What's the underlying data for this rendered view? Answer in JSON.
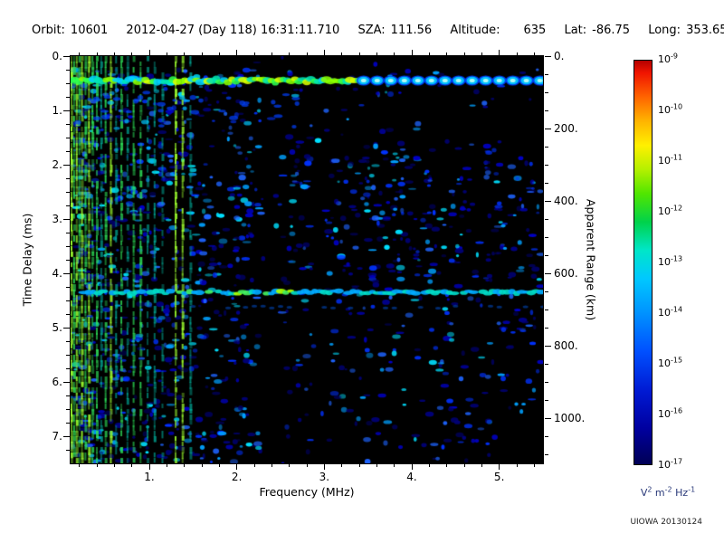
{
  "header": {
    "orbit_label": "Orbit:",
    "orbit_value": "10601",
    "datetime": "2012-04-27 (Day 118) 16:31:11.710",
    "sza_label": "SZA:",
    "sza_value": "111.56",
    "altitude_label": "Altitude:",
    "altitude_value": "635",
    "lat_label": "Lat:",
    "lat_value": "-86.75",
    "long_label": "Long:",
    "long_value": "353.65"
  },
  "chart_data": {
    "type": "heatmap",
    "title": "",
    "xlabel": "Frequency (MHz)",
    "ylabel_left": "Time Delay (ms)",
    "ylabel_right": "Apparent Range (km)",
    "x_range": [
      0.1,
      5.5
    ],
    "x_tick_values": [
      1,
      2,
      3,
      4,
      5
    ],
    "x_tick_labels": [
      "1.",
      "2.",
      "3.",
      "4.",
      "5."
    ],
    "x_minor_step": 0.2,
    "y_range_ms": [
      0,
      7.5
    ],
    "y_tick_values": [
      0,
      1,
      2,
      3,
      4,
      5,
      6,
      7
    ],
    "y_tick_labels": [
      "0.",
      "1.",
      "2.",
      "3.",
      "4.",
      "5.",
      "6.",
      "7."
    ],
    "y_minor_step": 0.25,
    "y2_km_per_ms": 150,
    "y2_tick_values_km": [
      0,
      200,
      400,
      600,
      800,
      1000
    ],
    "y2_tick_labels": [
      "0.",
      "200.",
      "400.",
      "600.",
      "800.",
      "1000."
    ],
    "y2_minor_step_km": 50,
    "background": "#000000",
    "features": {
      "ionosphere_trace": {
        "delay_ms": 0.45,
        "bead_start_mhz": 3.45,
        "bead_step_mhz": 0.155
      },
      "surface_trace": {
        "delay_ms": 4.35,
        "start_mhz": 0.25,
        "echo_delay_ms": 4.62
      },
      "vertical_lines": [
        {
          "mhz": 0.11,
          "i": 1.0
        },
        {
          "mhz": 0.14,
          "i": 0.85
        },
        {
          "mhz": 0.17,
          "i": 0.95
        },
        {
          "mhz": 0.2,
          "i": 0.7
        },
        {
          "mhz": 0.23,
          "i": 0.9
        },
        {
          "mhz": 0.27,
          "i": 0.8
        },
        {
          "mhz": 0.31,
          "i": 0.95
        },
        {
          "mhz": 0.35,
          "i": 0.7
        },
        {
          "mhz": 0.4,
          "i": 0.85
        },
        {
          "mhz": 0.45,
          "i": 0.6
        },
        {
          "mhz": 0.5,
          "i": 0.8
        },
        {
          "mhz": 0.56,
          "i": 0.9
        },
        {
          "mhz": 0.62,
          "i": 0.6
        },
        {
          "mhz": 0.68,
          "i": 0.75
        },
        {
          "mhz": 0.75,
          "i": 0.55
        },
        {
          "mhz": 0.82,
          "i": 0.7
        },
        {
          "mhz": 0.9,
          "i": 0.8
        },
        {
          "mhz": 0.98,
          "i": 0.5
        },
        {
          "mhz": 1.06,
          "i": 0.65
        },
        {
          "mhz": 1.15,
          "i": 0.45
        },
        {
          "mhz": 1.3,
          "i": 0.95
        },
        {
          "mhz": 1.38,
          "i": 0.9
        },
        {
          "mhz": 1.47,
          "i": 0.6
        }
      ],
      "absorption_gaps_mhz": [
        [
          2.28,
          2.52
        ],
        [
          2.85,
          3.02
        ]
      ],
      "speckle": {
        "count": 3000,
        "palette": [
          "#000078",
          "#0000c8",
          "#0032ff",
          "#1e64ff",
          "#00a0ff",
          "#00e0ff"
        ]
      }
    }
  },
  "colorbar": {
    "exponents": [
      "-9",
      "-10",
      "-11",
      "-12",
      "-13",
      "-14",
      "-15",
      "-16",
      "-17"
    ],
    "unit_parts": [
      [
        "V",
        "2"
      ],
      [
        "m",
        "-2"
      ],
      [
        "Hz",
        "-1"
      ]
    ],
    "gradient": [
      [
        "#b40000",
        0
      ],
      [
        "#f01400",
        3
      ],
      [
        "#ff6400",
        9
      ],
      [
        "#ffb400",
        15
      ],
      [
        "#fff000",
        21
      ],
      [
        "#b4f000",
        27
      ],
      [
        "#50e600",
        33
      ],
      [
        "#00d24b",
        40
      ],
      [
        "#00e6c8",
        47
      ],
      [
        "#00c8ff",
        54
      ],
      [
        "#0096ff",
        62
      ],
      [
        "#0050ff",
        72
      ],
      [
        "#0019d2",
        82
      ],
      [
        "#0000a0",
        91
      ],
      [
        "#000055",
        100
      ]
    ]
  },
  "credit": "UIOWA 20130124"
}
